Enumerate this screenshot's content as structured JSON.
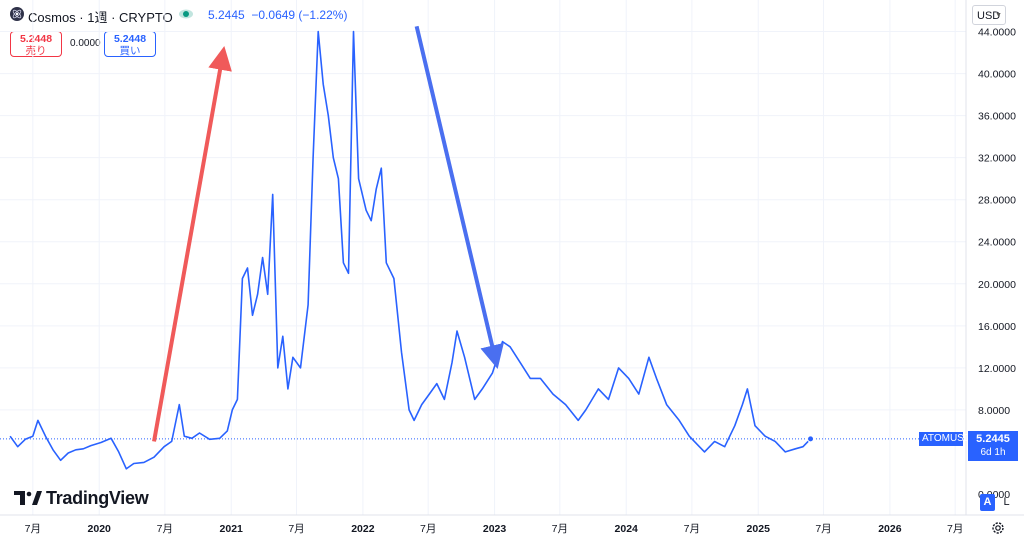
{
  "header": {
    "title": "Cosmos · 1週 · CRYPTO",
    "last_price": "5.2445",
    "change": "−0.0649 (−1.22%)"
  },
  "trade": {
    "sell_price": "5.2448",
    "sell_label": "売り",
    "spread": "0.0000",
    "buy_price": "5.2448",
    "buy_label": "買い"
  },
  "currency": "USD",
  "price_tag": {
    "symbol": "ATOMUSD",
    "price": "5.2445",
    "countdown": "6d 1h"
  },
  "scale_buttons": {
    "auto": "A",
    "log": "L"
  },
  "logo_text": "TradingView",
  "colors": {
    "line": "#2962ff",
    "up_arrow": "#f05a5a",
    "down_arrow": "#4a6ff0",
    "sell": "#f23645",
    "buy": "#2962ff"
  },
  "icons": [
    "cosmos-coin-icon",
    "eye-icon",
    "chevron-down-icon",
    "gear-icon",
    "tradingview-logo-icon"
  ],
  "chart_data": {
    "type": "line",
    "series": [
      {
        "name": "ATOMUSD",
        "x": [
          "2019-04-29",
          "2019-05-20",
          "2019-06-10",
          "2019-07-01",
          "2019-07-15",
          "2019-08-05",
          "2019-08-26",
          "2019-09-16",
          "2019-10-07",
          "2019-10-28",
          "2019-11-18",
          "2019-12-09",
          "2020-01-06",
          "2020-02-03",
          "2020-02-24",
          "2020-03-16",
          "2020-04-06",
          "2020-05-04",
          "2020-06-01",
          "2020-06-29",
          "2020-07-20",
          "2020-08-10",
          "2020-08-24",
          "2020-09-14",
          "2020-10-05",
          "2020-11-02",
          "2020-11-30",
          "2020-12-21",
          "2021-01-04",
          "2021-01-18",
          "2021-02-01",
          "2021-02-15",
          "2021-03-01",
          "2021-03-15",
          "2021-03-29",
          "2021-04-12",
          "2021-04-26",
          "2021-05-10",
          "2021-05-24",
          "2021-06-07",
          "2021-06-21",
          "2021-07-12",
          "2021-08-02",
          "2021-08-16",
          "2021-08-30",
          "2021-09-13",
          "2021-09-27",
          "2021-10-11",
          "2021-10-25",
          "2021-11-08",
          "2021-11-22",
          "2021-12-06",
          "2021-12-20",
          "2022-01-10",
          "2022-01-24",
          "2022-02-07",
          "2022-02-21",
          "2022-03-07",
          "2022-03-28",
          "2022-04-18",
          "2022-05-09",
          "2022-05-23",
          "2022-06-13",
          "2022-07-04",
          "2022-07-25",
          "2022-08-15",
          "2022-09-05",
          "2022-09-19",
          "2022-10-10",
          "2022-11-07",
          "2022-11-28",
          "2022-12-26",
          "2023-01-23",
          "2023-02-13",
          "2023-03-13",
          "2023-04-10",
          "2023-05-08",
          "2023-06-12",
          "2023-07-17",
          "2023-08-21",
          "2023-09-11",
          "2023-10-16",
          "2023-11-13",
          "2023-12-11",
          "2024-01-08",
          "2024-02-05",
          "2024-03-04",
          "2024-03-25",
          "2024-04-22",
          "2024-05-27",
          "2024-06-24",
          "2024-07-22",
          "2024-08-05",
          "2024-09-02",
          "2024-09-30",
          "2024-10-28",
          "2024-11-18",
          "2024-12-02",
          "2024-12-23",
          "2025-01-20",
          "2025-02-17",
          "2025-03-17",
          "2025-04-14",
          "2025-05-05",
          "2025-05-26"
        ],
        "values": [
          5.5,
          4.5,
          5.2,
          5.5,
          7.0,
          5.5,
          4.2,
          3.2,
          3.9,
          4.2,
          4.3,
          4.6,
          4.9,
          5.3,
          4.0,
          2.4,
          2.9,
          3.0,
          3.5,
          4.5,
          5.0,
          8.5,
          5.5,
          5.3,
          5.8,
          5.2,
          5.3,
          6.0,
          8.0,
          9.0,
          20.5,
          21.5,
          17.0,
          19.0,
          22.5,
          19.0,
          28.5,
          12.0,
          15.0,
          10.0,
          13.0,
          12.0,
          18.0,
          32.0,
          44.0,
          39.0,
          36.0,
          32.0,
          30.0,
          22.0,
          21.0,
          44.0,
          30.0,
          27.0,
          26.0,
          29.0,
          31.0,
          22.0,
          20.5,
          13.5,
          8.0,
          7.0,
          8.5,
          9.5,
          10.5,
          9.0,
          12.5,
          15.5,
          13.0,
          9.0,
          10.0,
          11.5,
          14.5,
          14.0,
          12.5,
          11.0,
          11.0,
          9.5,
          8.5,
          7.0,
          8.0,
          10.0,
          9.0,
          12.0,
          11.0,
          9.5,
          13.0,
          11.0,
          8.5,
          7.0,
          5.5,
          4.5,
          4.0,
          5.0,
          4.5,
          6.5,
          8.5,
          10.0,
          6.5,
          5.5,
          5.0,
          4.0,
          4.3,
          4.5,
          5.2445
        ]
      }
    ],
    "x_ticks": [
      "7月",
      "2020",
      "7月",
      "2021",
      "7月",
      "2022",
      "7月",
      "2023",
      "7月",
      "2024",
      "7月",
      "2025",
      "7月",
      "2026",
      "7月"
    ],
    "y_ticks": [
      "44.0000",
      "40.0000",
      "36.0000",
      "32.0000",
      "28.0000",
      "24.0000",
      "20.0000",
      "16.0000",
      "12.0000",
      "8.0000",
      "0.0000"
    ],
    "ylim": [
      -2,
      47
    ],
    "xlim": [
      "2019-04-01",
      "2026-07-31"
    ],
    "current_price": 5.2445,
    "annotations": [
      {
        "type": "arrow",
        "color": "#f05a5a",
        "from": [
          "2020-06-01",
          5.0
        ],
        "to": [
          "2020-12-07",
          41.5
        ]
      },
      {
        "type": "arrow",
        "color": "#4a6ff0",
        "from": [
          "2022-05-30",
          44.5
        ],
        "to": [
          "2023-01-02",
          13.0
        ]
      }
    ],
    "grid": true
  }
}
